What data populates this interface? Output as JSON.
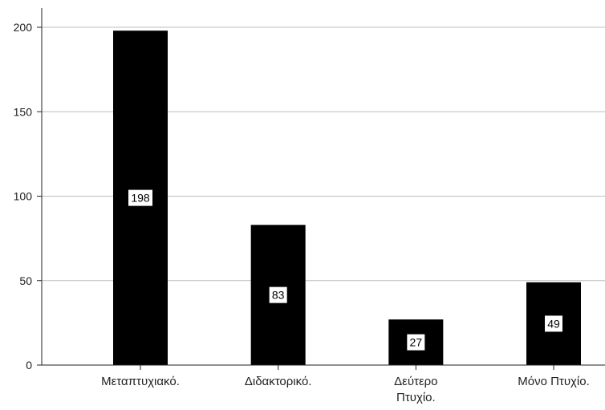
{
  "chart_data": {
    "type": "bar",
    "categories": [
      [
        "Μεταπτυχιακό."
      ],
      [
        "Διδακτορικό."
      ],
      [
        "Δεύτερο",
        "Πτυχίο."
      ],
      [
        "Μόνο Πτυχίο."
      ]
    ],
    "values": [
      198,
      83,
      27,
      49
    ],
    "data_labels": [
      "198",
      "83",
      "27",
      "49"
    ],
    "yticks": [
      0,
      50,
      100,
      150,
      200
    ],
    "ylim": [
      0,
      200
    ],
    "grid": true,
    "legend": "none",
    "colors": {
      "bar": "#000000",
      "grid": "#bdbdbd",
      "axis": "#222222",
      "label_box": "#ffffff",
      "background": "#ffffff"
    },
    "title": "",
    "xlabel": "",
    "ylabel": ""
  }
}
